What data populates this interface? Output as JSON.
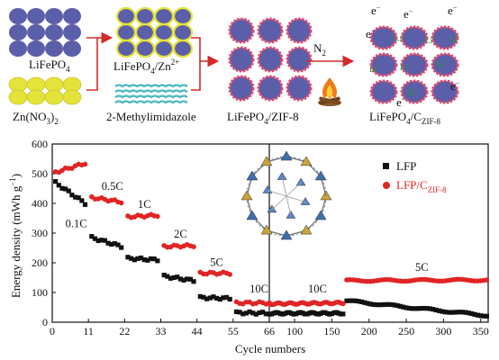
{
  "schematic": {
    "labels": {
      "lfp": "LiFePO",
      "lfp_sub": "4",
      "zn_pre": "Zn(NO",
      "zn_sub1": "3",
      "zn_mid": ")",
      "zn_sub2": "2",
      "lfp_zn": "LiFePO",
      "lfp_zn_sub": "4",
      "lfp_zn_tail": "/Zn",
      "lfp_zn_sup": "2+",
      "methyl": "2-Methylimidazole",
      "zif": "LiFePO",
      "zif_sub": "4",
      "zif_tail": "/ZIF-8",
      "carbon": "LiFePO",
      "carbon_sub": "4",
      "carbon_mid": "/C",
      "carbon_sub2": "ZIF-8",
      "n2": "N",
      "n2_sub": "2",
      "electron": "e",
      "electron_sup": "−",
      "li": "Li",
      "li_sup": "+"
    },
    "colors": {
      "lfp_particle": "#5b5ea8",
      "zn_particle": "#e4e33a",
      "arrow": "#d42a2a",
      "zif_shell": "#e0486a",
      "wave": "#49b8c0",
      "li_label": "#22a02a"
    }
  },
  "chart_data": {
    "type": "scatter",
    "xlabel": "Cycle numbers",
    "ylabel": "Energy density (mWh g",
    "ylabel_sup": "−1",
    "ylabel_tail": ")",
    "y_ticks": [
      "0",
      "100",
      "200",
      "300",
      "400",
      "500",
      "600"
    ],
    "ylim": [
      0,
      600
    ],
    "x_segments": [
      {
        "ticks": [
          "0",
          "11",
          "22",
          "33",
          "44",
          "55",
          "66"
        ],
        "range": [
          0,
          66
        ]
      },
      {
        "ticks": [
          "100",
          "150",
          "200",
          "250",
          "300",
          "350"
        ],
        "range": [
          66,
          360
        ]
      }
    ],
    "rate_labels": [
      {
        "text": "0.1C",
        "x": 4,
        "y": 320
      },
      {
        "text": "0.5C",
        "x": 15,
        "y": 445
      },
      {
        "text": "1C",
        "x": 26,
        "y": 385
      },
      {
        "text": "2C",
        "x": 37,
        "y": 285
      },
      {
        "text": "5C",
        "x": 48,
        "y": 190
      },
      {
        "text": "10C",
        "x": 60,
        "y": 100
      },
      {
        "text": "10C",
        "x": 118,
        "y": 100
      },
      {
        "text": "5C",
        "x": 262,
        "y": 172
      }
    ],
    "legend_position": "top-right",
    "series": [
      {
        "name": "LFP",
        "color": "#111111",
        "marker": "square",
        "segments": [
          {
            "x_start": 1,
            "x_end": 10,
            "y_start": 470,
            "y_end": 400
          },
          {
            "x_start": 12,
            "x_end": 21,
            "y_start": 285,
            "y_end": 255
          },
          {
            "x_start": 23,
            "x_end": 32,
            "y_start": 215,
            "y_end": 210
          },
          {
            "x_start": 34,
            "x_end": 43,
            "y_start": 155,
            "y_end": 140
          },
          {
            "x_start": 45,
            "x_end": 54,
            "y_start": 83,
            "y_end": 80
          },
          {
            "x_start": 56,
            "x_end": 66,
            "y_start": 32,
            "y_end": 30
          },
          {
            "x_start": 66,
            "x_end": 165,
            "y_start": 30,
            "y_end": 30
          },
          {
            "x_start": 170,
            "x_end": 360,
            "y_start": 72,
            "y_end": 22
          }
        ]
      },
      {
        "name": "LFP/C",
        "name_sub": "ZIF-8",
        "color": "#e02424",
        "marker": "circle",
        "segments": [
          {
            "x_start": 1,
            "x_end": 10,
            "y_start": 505,
            "y_end": 535
          },
          {
            "x_start": 12,
            "x_end": 21,
            "y_start": 420,
            "y_end": 405
          },
          {
            "x_start": 23,
            "x_end": 32,
            "y_start": 355,
            "y_end": 360
          },
          {
            "x_start": 34,
            "x_end": 43,
            "y_start": 255,
            "y_end": 258
          },
          {
            "x_start": 45,
            "x_end": 54,
            "y_start": 165,
            "y_end": 165
          },
          {
            "x_start": 56,
            "x_end": 66,
            "y_start": 65,
            "y_end": 65
          },
          {
            "x_start": 66,
            "x_end": 165,
            "y_start": 62,
            "y_end": 65
          },
          {
            "x_start": 170,
            "x_end": 360,
            "y_start": 140,
            "y_end": 142
          }
        ]
      }
    ]
  }
}
